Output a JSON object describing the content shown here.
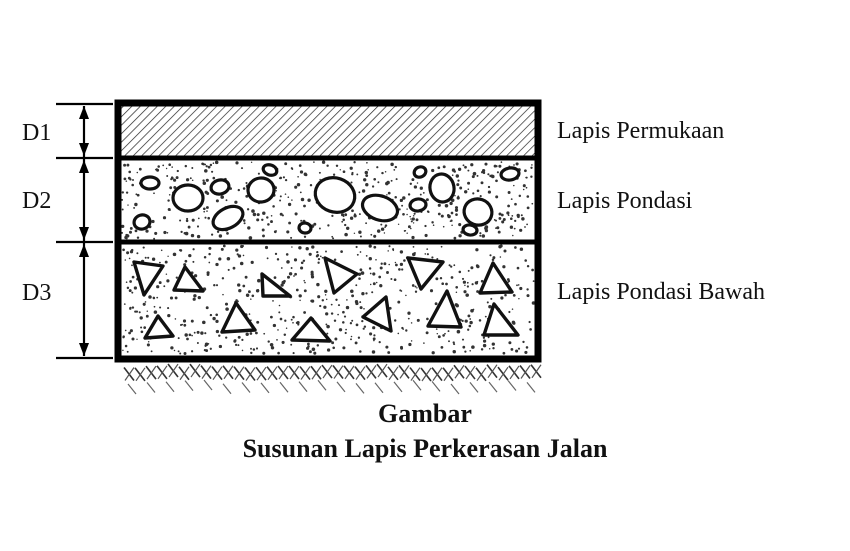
{
  "diagram": {
    "dimensions": [
      "D1",
      "D2",
      "D3"
    ],
    "layers": [
      "Lapis Permukaan",
      "Lapis Pondasi",
      "Lapis Pondasi Bawah"
    ],
    "caption": {
      "line1": "Gambar",
      "line2": "Susunan Lapis Perkerasan Jalan"
    }
  }
}
